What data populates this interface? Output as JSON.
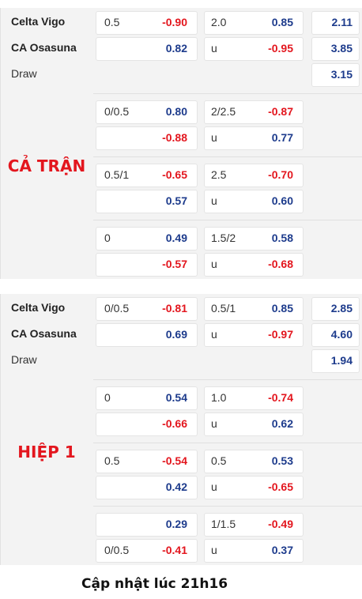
{
  "sections": [
    {
      "label": "CẢ TRẬN",
      "teams": [
        "Celta Vigo",
        "CA Osasuna",
        "Draw"
      ],
      "blocks": [
        [
          [
            "0.5",
            "-0.90",
            "2.0",
            "0.85",
            "2.11"
          ],
          [
            null,
            "0.82",
            "u",
            "-0.95",
            "3.85"
          ],
          [
            null,
            null,
            null,
            null,
            "3.15"
          ]
        ],
        [
          [
            "0/0.5",
            "0.80",
            "2/2.5",
            "-0.87",
            null
          ],
          [
            null,
            "-0.88",
            "u",
            "0.77",
            null
          ]
        ],
        [
          [
            "0.5/1",
            "-0.65",
            "2.5",
            "-0.70",
            null
          ],
          [
            null,
            "0.57",
            "u",
            "0.60",
            null
          ]
        ],
        [
          [
            "0",
            "0.49",
            "1.5/2",
            "0.58",
            null
          ],
          [
            null,
            "-0.57",
            "u",
            "-0.68",
            null
          ]
        ]
      ]
    },
    {
      "label": "HIỆP 1",
      "teams": [
        "Celta Vigo",
        "CA Osasuna",
        "Draw"
      ],
      "blocks": [
        [
          [
            "0/0.5",
            "-0.81",
            "0.5/1",
            "0.85",
            "2.85"
          ],
          [
            null,
            "0.69",
            "u",
            "-0.97",
            "4.60"
          ],
          [
            null,
            null,
            null,
            null,
            "1.94"
          ]
        ],
        [
          [
            "0",
            "0.54",
            "1.0",
            "-0.74",
            null
          ],
          [
            null,
            "-0.66",
            "u",
            "0.62",
            null
          ]
        ],
        [
          [
            "0.5",
            "-0.54",
            "0.5",
            "0.53",
            null
          ],
          [
            null,
            "0.42",
            "u",
            "-0.65",
            null
          ]
        ],
        [
          [
            null,
            "0.29",
            "1/1.5",
            "-0.49",
            null
          ],
          [
            "0/0.5",
            "-0.41",
            "u",
            "0.37",
            null
          ]
        ]
      ]
    }
  ],
  "footer": "Cập nhật lúc 21h16"
}
